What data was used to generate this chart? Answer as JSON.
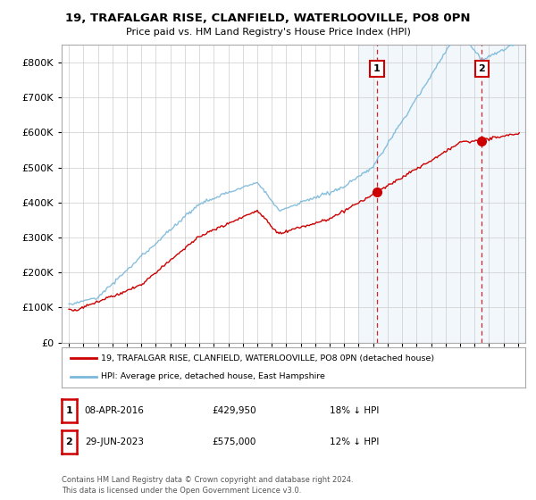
{
  "title": "19, TRAFALGAR RISE, CLANFIELD, WATERLOOVILLE, PO8 0PN",
  "subtitle": "Price paid vs. HM Land Registry's House Price Index (HPI)",
  "legend_line1": "19, TRAFALGAR RISE, CLANFIELD, WATERLOOVILLE, PO8 0PN (detached house)",
  "legend_line2": "HPI: Average price, detached house, East Hampshire",
  "annotation1_label": "1",
  "annotation1_date": "08-APR-2016",
  "annotation1_price": "£429,950",
  "annotation1_note": "18% ↓ HPI",
  "annotation2_label": "2",
  "annotation2_date": "29-JUN-2023",
  "annotation2_price": "£575,000",
  "annotation2_note": "12% ↓ HPI",
  "footer": "Contains HM Land Registry data © Crown copyright and database right 2024.\nThis data is licensed under the Open Government Licence v3.0.",
  "hpi_color": "#7ab8d9",
  "price_color": "#cc0000",
  "annotation_vline_color": "#cc0000",
  "background_color": "#ffffff",
  "grid_color": "#cccccc",
  "shade_color": "#ddeeff",
  "ylim": [
    0,
    850000
  ],
  "yticks": [
    0,
    100000,
    200000,
    300000,
    400000,
    500000,
    600000,
    700000,
    800000
  ],
  "xlim_start": 1994.5,
  "xlim_end": 2026.5,
  "ann1_x": 2016.25,
  "ann1_y": 429950,
  "ann2_x": 2023.5,
  "ann2_y": 575000
}
